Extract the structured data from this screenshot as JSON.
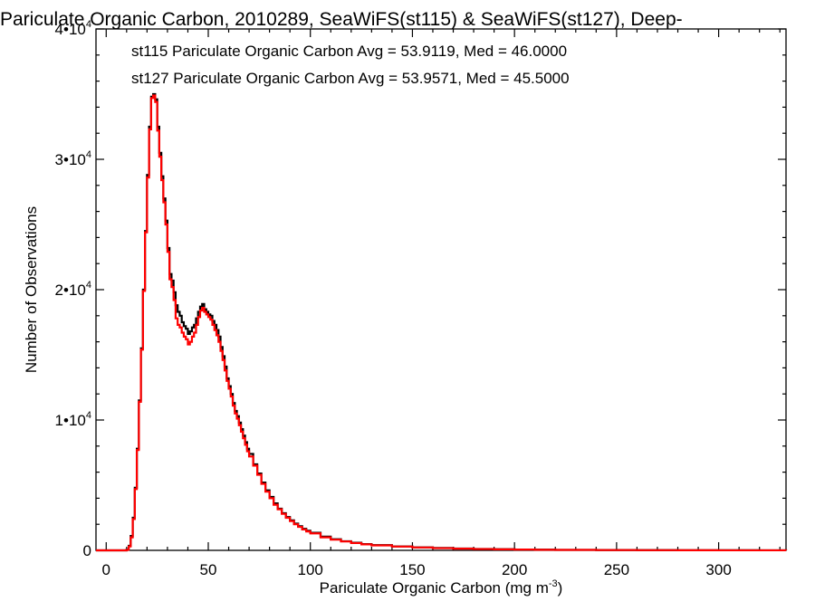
{
  "chart_data": {
    "type": "line",
    "title": "Pariculate Organic Carbon, 2010289, SeaWiFS(st115) & SeaWiFS(st127), Deep-",
    "xlabel": "Pariculate Organic Carbon (mg m",
    "xlabel_exponent": "-3",
    "xlabel_close": ")",
    "ylabel": "Number of Observations",
    "xlim": [
      -5,
      333
    ],
    "ylim": [
      0,
      40000
    ],
    "x_ticks": [
      0,
      50,
      100,
      150,
      200,
      250,
      300
    ],
    "y_ticks": [
      {
        "value": 0,
        "base": "0",
        "exp": ""
      },
      {
        "value": 10000,
        "base": "1•10",
        "exp": "4"
      },
      {
        "value": 20000,
        "base": "2•10",
        "exp": "4"
      },
      {
        "value": 30000,
        "base": "3•10",
        "exp": "4"
      },
      {
        "value": 40000,
        "base": "4•10",
        "exp": "4"
      }
    ],
    "grid": false,
    "legend_position": "top-left",
    "bin_width": 1,
    "series": [
      {
        "name": "st115",
        "label": "st115 Pariculate Organic Carbon Avg = 53.9119, Med = 46.0000",
        "color": "#000000",
        "x": [
          0,
          10,
          11,
          12,
          13,
          14,
          15,
          16,
          17,
          18,
          19,
          20,
          21,
          22,
          23,
          24,
          25,
          26,
          27,
          28,
          29,
          30,
          31,
          32,
          33,
          34,
          35,
          36,
          37,
          38,
          39,
          40,
          41,
          42,
          43,
          44,
          45,
          46,
          47,
          48,
          49,
          50,
          51,
          52,
          53,
          54,
          55,
          56,
          57,
          58,
          59,
          60,
          61,
          62,
          63,
          64,
          65,
          66,
          67,
          68,
          69,
          70,
          72,
          74,
          76,
          78,
          80,
          82,
          84,
          86,
          88,
          90,
          92,
          94,
          96,
          98,
          100,
          105,
          110,
          115,
          120,
          125,
          130,
          140,
          150,
          160,
          170,
          180,
          190,
          200,
          210,
          220,
          240,
          260,
          280,
          300,
          320,
          333
        ],
        "y": [
          0,
          50,
          350,
          1100,
          2500,
          4800,
          7800,
          11500,
          15500,
          20000,
          24500,
          28800,
          32500,
          34800,
          35000,
          34600,
          32500,
          30500,
          28700,
          27000,
          25300,
          23200,
          21200,
          20700,
          19800,
          18800,
          18300,
          18000,
          17500,
          17200,
          17000,
          16600,
          16800,
          17100,
          17300,
          17800,
          18300,
          18700,
          18900,
          18500,
          18300,
          18100,
          18000,
          17600,
          17300,
          16900,
          16400,
          15600,
          14900,
          14100,
          13200,
          12600,
          12000,
          11300,
          10700,
          10300,
          9800,
          9300,
          8800,
          8300,
          7800,
          7400,
          6600,
          5900,
          5200,
          4600,
          4100,
          3600,
          3200,
          2850,
          2550,
          2300,
          2050,
          1850,
          1650,
          1500,
          1350,
          1050,
          850,
          700,
          580,
          480,
          400,
          300,
          230,
          180,
          140,
          110,
          85,
          65,
          50,
          40,
          25,
          15,
          10,
          8,
          5,
          0
        ]
      },
      {
        "name": "st127",
        "label": "st127 Pariculate Organic Carbon Avg = 53.9571, Med = 45.5000",
        "color": "#ff0000",
        "x": [
          0,
          10,
          11,
          12,
          13,
          14,
          15,
          16,
          17,
          18,
          19,
          20,
          21,
          22,
          23,
          24,
          25,
          26,
          27,
          28,
          29,
          30,
          31,
          32,
          33,
          34,
          35,
          36,
          37,
          38,
          39,
          40,
          41,
          42,
          43,
          44,
          45,
          46,
          47,
          48,
          49,
          50,
          51,
          52,
          53,
          54,
          55,
          56,
          57,
          58,
          59,
          60,
          61,
          62,
          63,
          64,
          65,
          66,
          67,
          68,
          69,
          70,
          72,
          74,
          76,
          78,
          80,
          82,
          84,
          86,
          88,
          90,
          92,
          94,
          96,
          98,
          100,
          105,
          110,
          115,
          120,
          125,
          130,
          140,
          150,
          160,
          170,
          180,
          190,
          200,
          210,
          220,
          240,
          260,
          280,
          300,
          320,
          333
        ],
        "y": [
          0,
          40,
          300,
          1000,
          2400,
          4700,
          7700,
          11400,
          15400,
          19900,
          24400,
          28600,
          32300,
          34700,
          34900,
          34400,
          32200,
          30200,
          28400,
          26700,
          25000,
          22900,
          20800,
          20200,
          19200,
          17800,
          17300,
          17100,
          16700,
          16400,
          16200,
          15800,
          16000,
          16400,
          16700,
          17300,
          17900,
          18400,
          18600,
          18300,
          18100,
          17900,
          17700,
          17300,
          16900,
          16500,
          16000,
          15300,
          14600,
          13800,
          13000,
          12400,
          11800,
          11100,
          10500,
          10100,
          9600,
          9100,
          8600,
          8100,
          7600,
          7200,
          6500,
          5800,
          5100,
          4500,
          4000,
          3500,
          3150,
          2800,
          2500,
          2250,
          2000,
          1800,
          1600,
          1450,
          1300,
          1000,
          820,
          680,
          560,
          460,
          380,
          290,
          220,
          170,
          130,
          100,
          80,
          60,
          45,
          35,
          22,
          12,
          8,
          6,
          4,
          0
        ]
      }
    ]
  }
}
